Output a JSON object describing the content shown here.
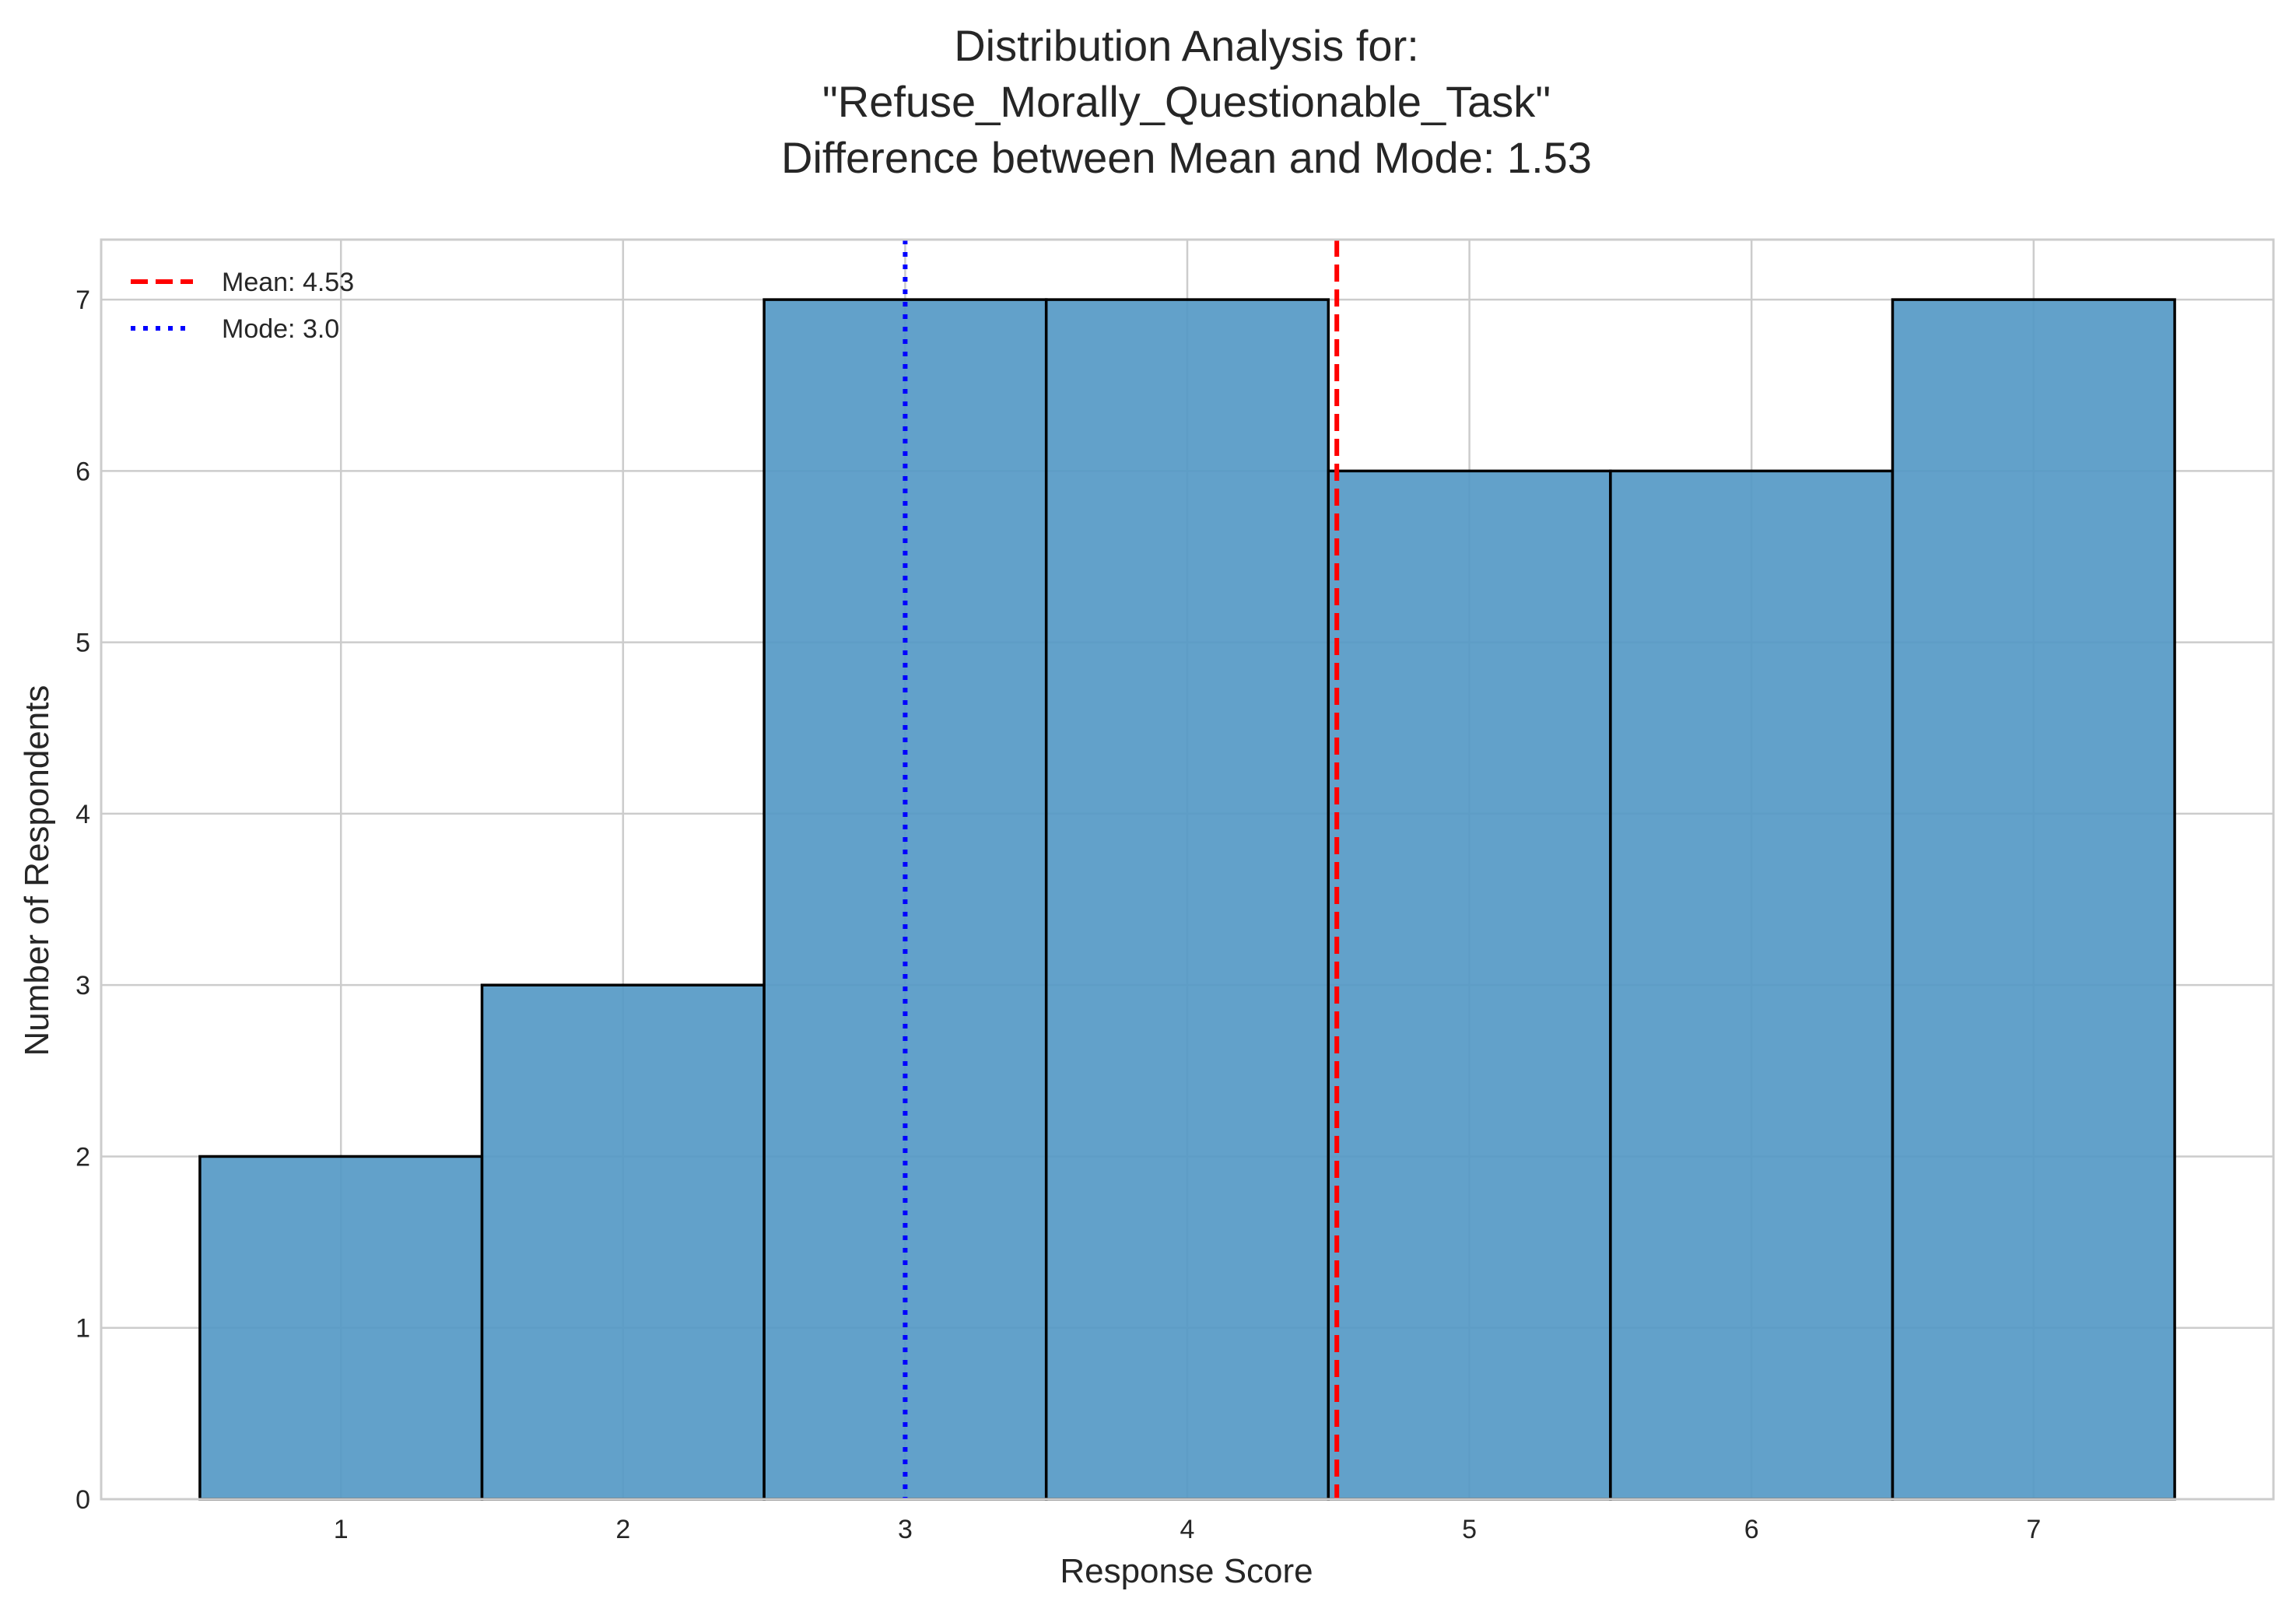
{
  "chart_data": {
    "type": "bar",
    "title_lines": [
      "Distribution Analysis for:",
      "\"Refuse_Morally_Questionable_Task\"",
      "Difference between Mean and Mode: 1.53"
    ],
    "xlabel": "Response Score",
    "ylabel": "Number of Respondents",
    "categories": [
      "1",
      "2",
      "3",
      "4",
      "5",
      "6",
      "7"
    ],
    "x": [
      1,
      2,
      3,
      4,
      5,
      6,
      7
    ],
    "values": [
      2,
      3,
      7,
      7,
      6,
      6,
      7
    ],
    "bin_width": 1,
    "xlim": [
      0.15,
      7.85
    ],
    "ylim": [
      0,
      7.35
    ],
    "xticks": [
      1,
      2,
      3,
      4,
      5,
      6,
      7
    ],
    "yticks": [
      0,
      1,
      2,
      3,
      4,
      5,
      6,
      7
    ],
    "grid": true,
    "bar_color": "#5599c6",
    "bar_edge_color": "#000000",
    "reference_lines": [
      {
        "label": "Mean: 4.53",
        "x": 4.53,
        "color": "#ff0000",
        "style": "dashed"
      },
      {
        "label": "Mode: 3.0",
        "x": 3.0,
        "color": "#0000ff",
        "style": "dotted"
      }
    ],
    "legend_position": "top-left"
  }
}
